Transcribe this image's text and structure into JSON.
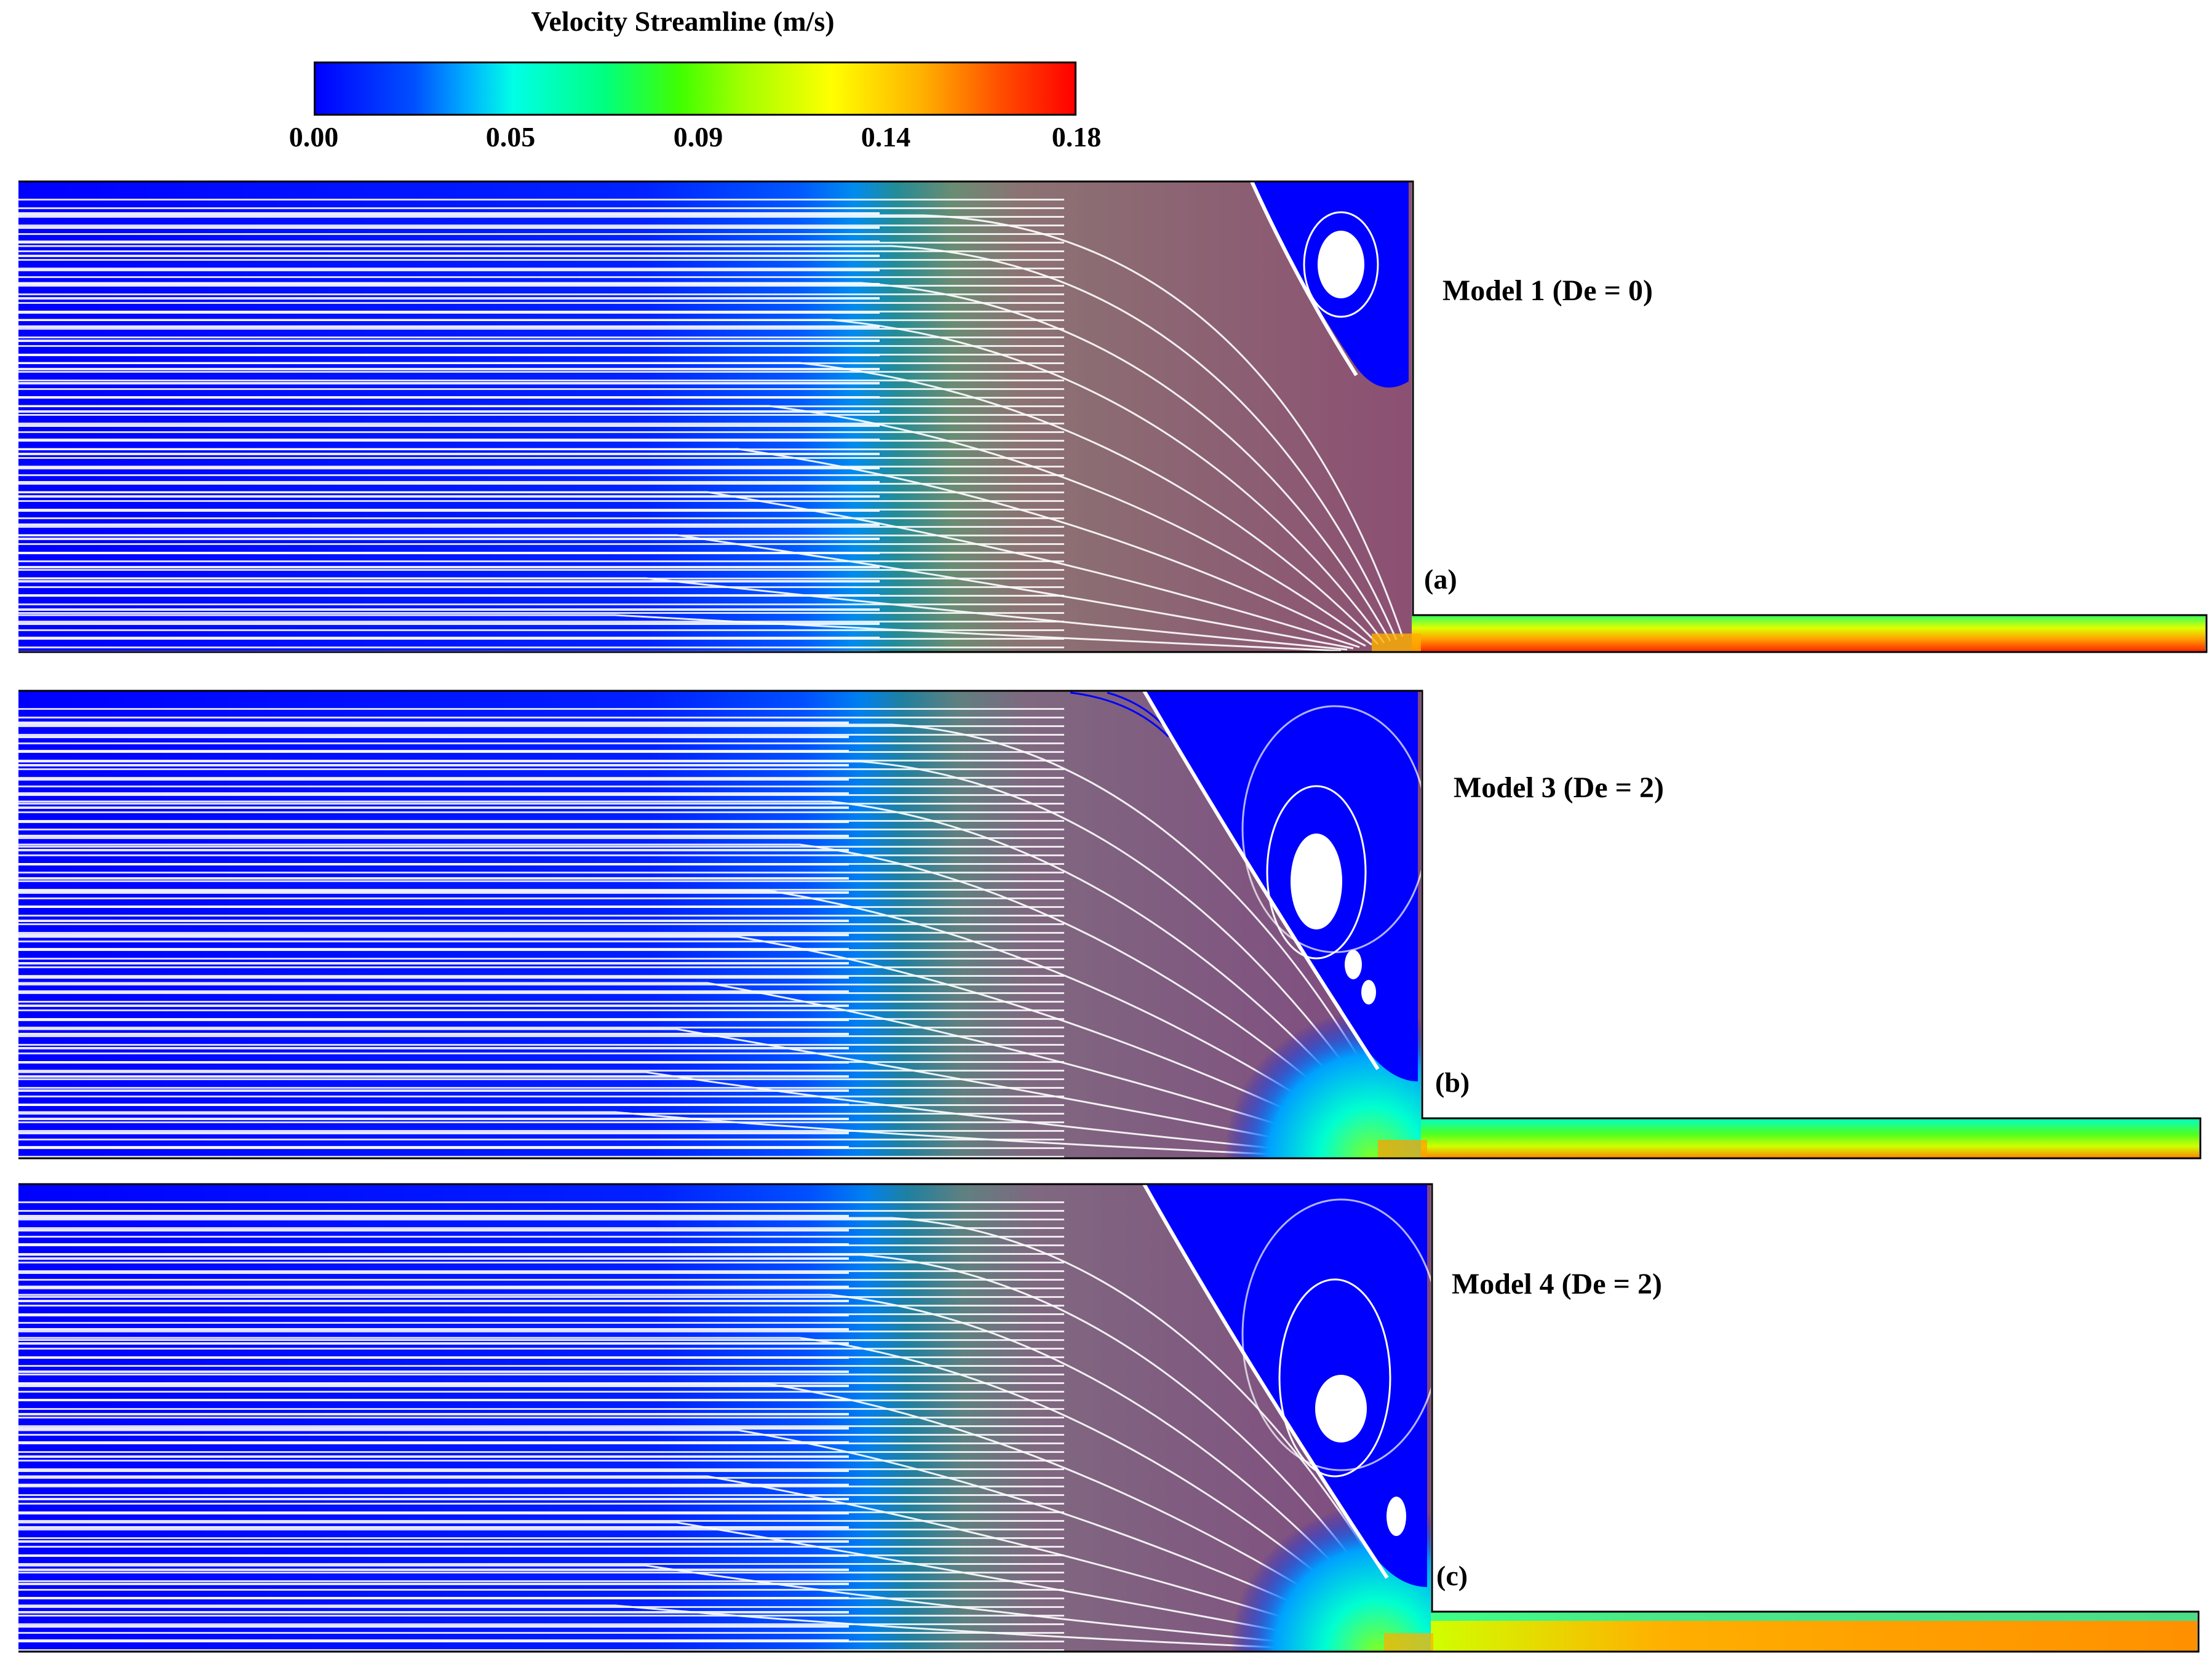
{
  "colorbar": {
    "title": "Velocity Streamline (m/s)",
    "ticks": [
      "0.00",
      "0.05",
      "0.09",
      "0.14",
      "0.18"
    ],
    "min": 0.0,
    "max": 0.18,
    "colors": [
      "#0000ff",
      "#00ffe6",
      "#40ff00",
      "#ffff00",
      "#ff0000"
    ]
  },
  "panels": [
    {
      "letter": "(a)",
      "label": "Model 1 (De = 0)"
    },
    {
      "letter": "(b)",
      "label": "Model 3 (De = 2)"
    },
    {
      "letter": "(c)",
      "label": "Model 4 (De = 2)"
    }
  ]
}
